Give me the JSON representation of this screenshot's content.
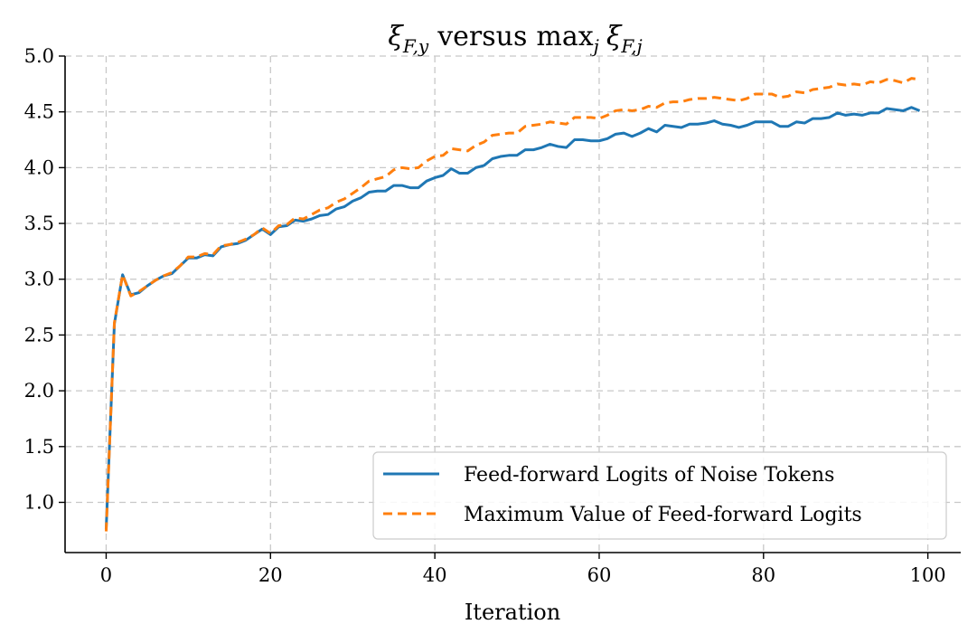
{
  "chart_data": {
    "type": "line",
    "title": "ξF,y versus maxj ξF,j",
    "title_parts": {
      "lhs": "ξ",
      "lhs_sub": "F,y",
      "mid": "versus",
      "max": "max",
      "max_sub": "j",
      "rhs": "ξ",
      "rhs_sub": "F,j"
    },
    "xlabel": "Iteration",
    "ylabel": "",
    "xlim": [
      -5,
      104
    ],
    "ylim": [
      0.55,
      5.0
    ],
    "xticks": [
      0,
      20,
      40,
      60,
      80,
      100
    ],
    "xtick_labels": [
      "0",
      "20",
      "40",
      "60",
      "80",
      "100"
    ],
    "yticks": [
      1.0,
      1.5,
      2.0,
      2.5,
      3.0,
      3.5,
      4.0,
      4.5,
      5.0
    ],
    "ytick_labels": [
      "1.0",
      "1.5",
      "2.0",
      "2.5",
      "3.0",
      "3.5",
      "4.0",
      "4.5",
      "5.0"
    ],
    "grid": true,
    "legend_position": "lower-right",
    "series": [
      {
        "name": "Feed-forward Logits of Noise Tokens",
        "color": "#1f77b4",
        "style": "solid",
        "values": [
          0.76,
          2.6,
          3.04,
          2.86,
          2.88,
          2.94,
          2.99,
          3.03,
          3.05,
          3.12,
          3.19,
          3.19,
          3.22,
          3.21,
          3.29,
          3.31,
          3.32,
          3.35,
          3.4,
          3.45,
          3.4,
          3.47,
          3.48,
          3.53,
          3.52,
          3.54,
          3.57,
          3.58,
          3.63,
          3.65,
          3.7,
          3.73,
          3.78,
          3.79,
          3.79,
          3.84,
          3.84,
          3.82,
          3.82,
          3.88,
          3.91,
          3.93,
          3.99,
          3.95,
          3.95,
          4.0,
          4.02,
          4.08,
          4.1,
          4.11,
          4.11,
          4.16,
          4.16,
          4.18,
          4.21,
          4.19,
          4.18,
          4.25,
          4.25,
          4.24,
          4.24,
          4.26,
          4.3,
          4.31,
          4.28,
          4.31,
          4.35,
          4.32,
          4.38,
          4.37,
          4.36,
          4.39,
          4.39,
          4.4,
          4.42,
          4.39,
          4.38,
          4.36,
          4.38,
          4.41,
          4.41,
          4.41,
          4.37,
          4.37,
          4.41,
          4.4,
          4.44,
          4.44,
          4.45,
          4.49,
          4.47,
          4.48,
          4.47,
          4.49,
          4.49,
          4.53,
          4.52,
          4.51,
          4.54,
          4.51
        ]
      },
      {
        "name": "Maximum Value of Feed-forward Logits",
        "color": "#ff7f0e",
        "style": "dashed",
        "values": [
          0.74,
          2.61,
          3.04,
          2.85,
          2.89,
          2.94,
          2.99,
          3.03,
          3.06,
          3.12,
          3.2,
          3.2,
          3.23,
          3.22,
          3.3,
          3.31,
          3.33,
          3.36,
          3.4,
          3.46,
          3.41,
          3.48,
          3.49,
          3.55,
          3.54,
          3.58,
          3.62,
          3.64,
          3.69,
          3.72,
          3.77,
          3.82,
          3.88,
          3.9,
          3.92,
          3.98,
          4.0,
          3.99,
          4.0,
          4.06,
          4.1,
          4.11,
          4.17,
          4.16,
          4.15,
          4.2,
          4.23,
          4.29,
          4.3,
          4.31,
          4.31,
          4.37,
          4.38,
          4.39,
          4.41,
          4.4,
          4.39,
          4.45,
          4.45,
          4.45,
          4.44,
          4.47,
          4.51,
          4.52,
          4.51,
          4.52,
          4.55,
          4.54,
          4.58,
          4.59,
          4.59,
          4.61,
          4.62,
          4.62,
          4.63,
          4.62,
          4.61,
          4.6,
          4.62,
          4.66,
          4.66,
          4.66,
          4.63,
          4.64,
          4.68,
          4.67,
          4.7,
          4.71,
          4.72,
          4.75,
          4.74,
          4.75,
          4.74,
          4.77,
          4.76,
          4.79,
          4.78,
          4.76,
          4.8,
          4.79
        ]
      }
    ]
  }
}
